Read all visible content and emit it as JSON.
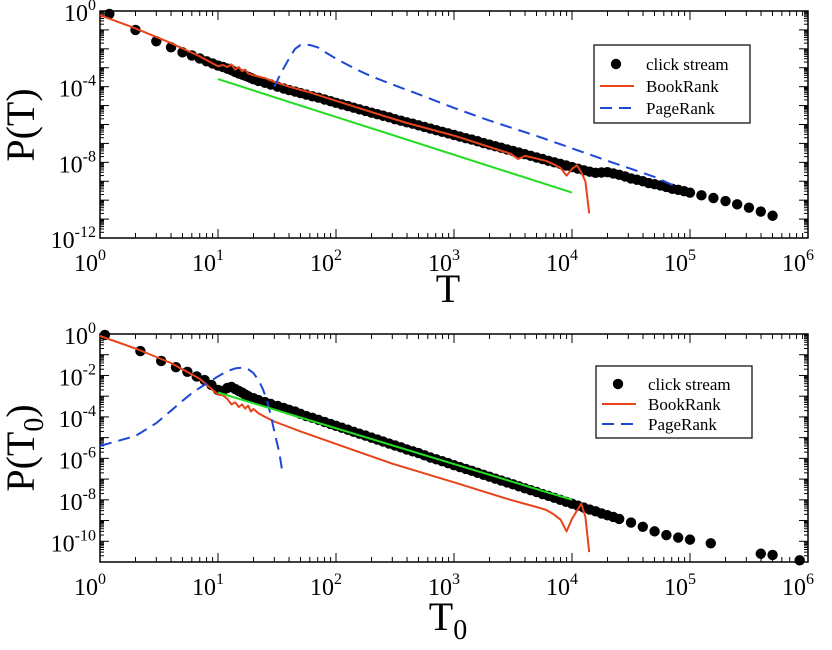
{
  "chart_data": [
    {
      "type": "line",
      "xscale": "log",
      "yscale": "log",
      "xlabel": "T",
      "ylabel": "P(T)",
      "xlim": [
        1,
        1000000
      ],
      "ylim": [
        1e-12,
        1
      ],
      "x_tick_labels": [
        {
          "value": 1,
          "base": "10",
          "exp": "0"
        },
        {
          "value": 10,
          "base": "10",
          "exp": "1"
        },
        {
          "value": 100,
          "base": "10",
          "exp": "2"
        },
        {
          "value": 1000,
          "base": "10",
          "exp": "3"
        },
        {
          "value": 10000,
          "base": "10",
          "exp": "4"
        },
        {
          "value": 100000,
          "base": "10",
          "exp": "5"
        },
        {
          "value": 1000000,
          "base": "10",
          "exp": "6"
        }
      ],
      "y_tick_labels": [
        {
          "value": 1,
          "base": "10",
          "exp": "0"
        },
        {
          "value": 0.0001,
          "base": "10",
          "exp": "-4"
        },
        {
          "value": 1e-08,
          "base": "10",
          "exp": "-8"
        },
        {
          "value": 1e-12,
          "base": "10",
          "exp": "-12"
        }
      ],
      "legend_position": "top-right",
      "series": [
        {
          "name": "click stream",
          "style": "markers",
          "color": "#000000",
          "x": [
            1.2,
            2,
            3,
            4,
            5,
            6,
            7,
            8,
            9,
            10,
            11,
            12,
            13,
            14,
            15,
            16,
            17,
            18,
            19,
            20,
            22,
            25,
            28,
            32,
            36,
            40,
            45,
            50,
            56,
            63,
            71,
            80,
            90,
            100,
            112,
            126,
            141,
            158,
            178,
            200,
            224,
            251,
            282,
            316,
            355,
            398,
            447,
            501,
            562,
            631,
            708,
            794,
            891,
            1000,
            1122,
            1259,
            1413,
            1585,
            1778,
            1995,
            2239,
            2512,
            2818,
            3162,
            3548,
            3981,
            4467,
            5012,
            5623,
            6310,
            7079,
            7943,
            8913,
            10000,
            11220,
            12589,
            14125,
            15849,
            17783,
            19953,
            22387,
            25119,
            28184,
            31623,
            35481,
            39811,
            44668,
            50119,
            56234,
            63096,
            70795,
            79433,
            89125,
            100000,
            125000,
            158000,
            200000,
            251000,
            316000,
            398000,
            501000
          ],
          "y": [
            0.7,
            0.1,
            0.025,
            0.012,
            0.0065,
            0.0045,
            0.0031,
            0.0022,
            0.0017,
            0.0013,
            0.0011,
            0.0009,
            0.00075,
            0.0006,
            0.0005,
            0.00044,
            0.00038,
            0.00033,
            0.00029,
            0.00025,
            0.0002,
            0.00016,
            0.00013,
            0.0001,
            8e-05,
            6.6e-05,
            5.5e-05,
            4.6e-05,
            3.8e-05,
            3.1e-05,
            2.6e-05,
            2.1e-05,
            1.7e-05,
            1.4e-05,
            1.15e-05,
            9.4e-06,
            7.7e-06,
            6.3e-06,
            5.2e-06,
            4.2e-06,
            3.5e-06,
            2.9e-06,
            2.4e-06,
            1.9e-06,
            1.6e-06,
            1.3e-06,
            1.1e-06,
            9e-07,
            7.4e-07,
            6.1e-07,
            5e-07,
            4.1e-07,
            3.4e-07,
            2.8e-07,
            2.3e-07,
            1.9e-07,
            1.6e-07,
            1.3e-07,
            1.05e-07,
            8.7e-08,
            7.1e-08,
            5.9e-08,
            4.8e-08,
            4e-08,
            3.3e-08,
            2.7e-08,
            2.2e-08,
            1.8e-08,
            1.5e-08,
            1.2e-08,
            1e-08,
            8.3e-09,
            6.8e-09,
            5.6e-09,
            4.6e-09,
            3.8e-09,
            3.2e-09,
            2.8e-09,
            2.9e-09,
            3e-09,
            2.6e-09,
            2.2e-09,
            1.8e-09,
            1.4e-09,
            1.2e-09,
            1e-09,
            8e-10,
            7e-10,
            6e-10,
            5e-10,
            4e-10,
            3.5e-10,
            3e-10,
            2.5e-10,
            1.8e-10,
            1.3e-10,
            9e-11,
            6e-11,
            4e-11,
            2.5e-11,
            1.5e-11
          ]
        },
        {
          "name": "BookRank",
          "style": "solid",
          "color": "#e8431a",
          "x": [
            1,
            2,
            4,
            7,
            10,
            11,
            12,
            13,
            14,
            15,
            16,
            17,
            18,
            20,
            25,
            30,
            40,
            60,
            100,
            200,
            400,
            1000,
            2000,
            3000,
            3500,
            4000,
            5000,
            6000,
            7000,
            8000,
            9000,
            10000,
            11000,
            12000,
            13000,
            14000
          ],
          "y": [
            0.6,
            0.12,
            0.02,
            0.004,
            0.0012,
            0.0014,
            0.0011,
            0.0015,
            0.0008,
            0.0011,
            0.00065,
            0.0008,
            0.0005,
            0.0004,
            0.00028,
            0.00018,
            0.0001,
            5e-05,
            1.8e-05,
            4.5e-06,
            1.2e-06,
            2.6e-07,
            6.5e-08,
            2.9e-08,
            1.5e-08,
            2.2e-08,
            1.6e-08,
            1.2e-08,
            8e-09,
            5e-09,
            2e-09,
            4.5e-09,
            7e-09,
            3e-09,
            1e-09,
            2e-11
          ]
        },
        {
          "name": "PageRank",
          "style": "dashed",
          "color": "#1f47d6",
          "x": [
            30,
            35,
            40,
            45,
            50,
            60,
            70,
            80,
            100,
            150,
            200,
            300,
            500,
            1000,
            2000,
            5000,
            10000,
            20000,
            50000,
            75000
          ],
          "y": [
            0.0001,
            0.0007,
            0.003,
            0.01,
            0.016,
            0.016,
            0.012,
            0.007,
            0.003,
            0.0008,
            0.00035,
            0.00013,
            4e-05,
            7.5e-06,
            1.6e-06,
            2.5e-07,
            5.5e-08,
            1.2e-08,
            1.7e-09,
            5.5e-10
          ]
        },
        {
          "name": "",
          "style": "solid",
          "color": "#22dd22",
          "x": [
            10,
            10000
          ],
          "y": [
            0.00025,
            2.5e-10
          ]
        }
      ]
    },
    {
      "type": "line",
      "xscale": "log",
      "yscale": "log",
      "xlabel": "T0",
      "ylabel": "P(T0)",
      "xlim": [
        1,
        1000000
      ],
      "ylim": [
        1e-11,
        1
      ],
      "x_tick_labels": [
        {
          "value": 1,
          "base": "10",
          "exp": "0"
        },
        {
          "value": 10,
          "base": "10",
          "exp": "1"
        },
        {
          "value": 100,
          "base": "10",
          "exp": "2"
        },
        {
          "value": 1000,
          "base": "10",
          "exp": "3"
        },
        {
          "value": 10000,
          "base": "10",
          "exp": "4"
        },
        {
          "value": 100000,
          "base": "10",
          "exp": "5"
        },
        {
          "value": 1000000,
          "base": "10",
          "exp": "6"
        }
      ],
      "y_tick_labels": [
        {
          "value": 1,
          "base": "10",
          "exp": "0"
        },
        {
          "value": 0.01,
          "base": "10",
          "exp": "-2"
        },
        {
          "value": 0.0001,
          "base": "10",
          "exp": "-4"
        },
        {
          "value": 1e-06,
          "base": "10",
          "exp": "-6"
        },
        {
          "value": 1e-08,
          "base": "10",
          "exp": "-8"
        },
        {
          "value": 1e-10,
          "base": "10",
          "exp": "-10"
        }
      ],
      "legend_position": "top-right",
      "series": [
        {
          "name": "click stream",
          "style": "markers",
          "color": "#000000",
          "x": [
            1.1,
            2.2,
            3.3,
            4.4,
            5.5,
            6.6,
            7.7,
            8.8,
            10,
            11,
            12,
            13,
            14,
            15,
            16,
            17,
            18,
            20,
            22,
            25,
            28,
            32,
            36,
            40,
            45,
            50,
            56,
            63,
            71,
            80,
            90,
            100,
            112,
            126,
            141,
            158,
            178,
            200,
            224,
            251,
            282,
            316,
            355,
            398,
            447,
            501,
            562,
            631,
            708,
            794,
            891,
            1000,
            1122,
            1259,
            1413,
            1585,
            1778,
            1995,
            2239,
            2512,
            2818,
            3162,
            3548,
            3981,
            4467,
            5012,
            5623,
            6310,
            7079,
            7943,
            8913,
            10000,
            11220,
            12589,
            14125,
            15849,
            17783,
            19953,
            22387,
            25119,
            31623,
            39811,
            50119,
            63096,
            79433,
            100000,
            150000,
            398000,
            501000,
            850000
          ],
          "y": [
            0.9,
            0.15,
            0.05,
            0.025,
            0.015,
            0.009,
            0.006,
            0.0035,
            0.002,
            0.0018,
            0.0025,
            0.0028,
            0.0022,
            0.0018,
            0.0015,
            0.0012,
            0.001,
            0.0008,
            0.00065,
            0.00052,
            0.00042,
            0.00034,
            0.00027,
            0.00022,
            0.00018,
            0.00014,
            0.00011,
            9e-05,
            7.2e-05,
            5.7e-05,
            4.6e-05,
            3.7e-05,
            3e-05,
            2.4e-05,
            1.9e-05,
            1.55e-05,
            1.25e-05,
            1e-05,
            8.1e-06,
            6.5e-06,
            5.2e-06,
            4.2e-06,
            3.4e-06,
            2.7e-06,
            2.2e-06,
            1.8e-06,
            1.4e-06,
            1.1e-06,
            9e-07,
            7.3e-07,
            5.9e-07,
            4.7e-07,
            3.8e-07,
            3.1e-07,
            2.5e-07,
            2e-07,
            1.6e-07,
            1.3e-07,
            1.05e-07,
            8.5e-08,
            6.9e-08,
            5.6e-08,
            4.5e-08,
            3.6e-08,
            2.9e-08,
            2.4e-08,
            1.9e-08,
            1.55e-08,
            1.25e-08,
            1e-08,
            8e-09,
            6.5e-09,
            5.2e-09,
            4.2e-09,
            3.4e-09,
            2.8e-09,
            2.2e-09,
            1.8e-09,
            1.5e-09,
            1.2e-09,
            8e-10,
            5e-10,
            3e-10,
            2e-10,
            1.5e-10,
            1.2e-10,
            8e-11,
            2.5e-11,
            2.2e-11,
            1.2e-11
          ]
        },
        {
          "name": "BookRank",
          "style": "solid",
          "color": "#e8431a",
          "x": [
            1,
            2,
            4,
            7,
            10,
            11,
            12,
            13,
            14,
            15,
            16,
            17,
            18,
            19,
            20,
            22,
            25,
            30,
            50,
            100,
            300,
            1000,
            3000,
            5000,
            6000,
            7000,
            8000,
            9000,
            10000,
            11000,
            12000,
            13000,
            14000
          ],
          "y": [
            0.8,
            0.2,
            0.04,
            0.007,
            0.0012,
            0.0011,
            0.00075,
            0.0004,
            0.0005,
            0.0003,
            0.0004,
            0.00025,
            0.00035,
            0.00018,
            0.00024,
            0.00015,
            0.0001,
            6e-05,
            2e-05,
            5e-06,
            5.5e-07,
            7e-08,
            1e-08,
            4.5e-09,
            3.3e-09,
            2e-09,
            1.1e-09,
            3e-10,
            1.2e-09,
            3e-09,
            6.5e-09,
            1.5e-09,
            3e-11
          ]
        },
        {
          "name": "PageRank",
          "style": "dashed",
          "color": "#1f47d6",
          "x": [
            1,
            2,
            3,
            4,
            5,
            6,
            7,
            8,
            10,
            12,
            14,
            16,
            18,
            20,
            22,
            24,
            26,
            28,
            30,
            33,
            35
          ],
          "y": [
            4e-06,
            1.2e-05,
            5e-05,
            0.0002,
            0.0006,
            0.0014,
            0.0025,
            0.004,
            0.009,
            0.016,
            0.022,
            0.024,
            0.02,
            0.013,
            0.006,
            0.0022,
            0.0006,
            0.00012,
            2e-05,
            2e-06,
            2.5e-07
          ]
        },
        {
          "name": "",
          "style": "solid",
          "color": "#22dd22",
          "x": [
            10,
            10000
          ],
          "y": [
            0.0015,
            1e-08
          ]
        }
      ]
    }
  ]
}
